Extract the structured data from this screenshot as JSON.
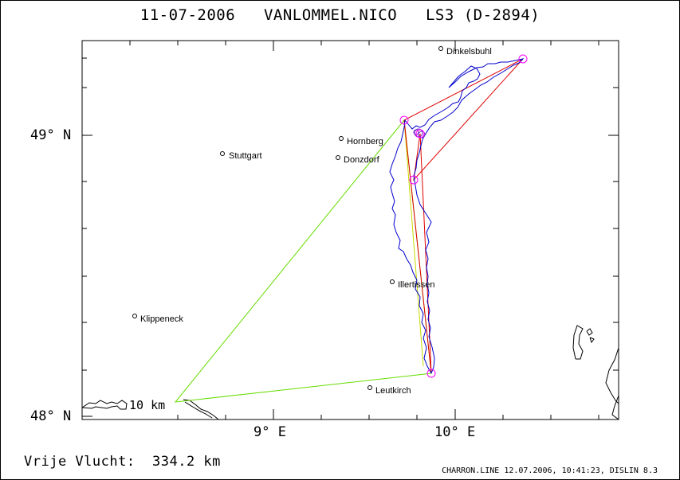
{
  "title": "11-07-2006   VANLOMMEL.NICO   LS3 (D-2894)",
  "axes": {
    "y_labels": [
      "49° N",
      "48° N"
    ],
    "x_labels": [
      "9° E",
      "10° E"
    ]
  },
  "places": [
    {
      "name": "Dinkelsbuhl"
    },
    {
      "name": "Hornberg"
    },
    {
      "name": "Stuttgart"
    },
    {
      "name": "Donzdorf"
    },
    {
      "name": "Illertissen"
    },
    {
      "name": "Klippeneck"
    },
    {
      "name": "Leutkirch"
    }
  ],
  "scale_label": "10 km",
  "distance_text": "Vrije Vlucht:  334.2 km",
  "footer": "CHARRON.LINE 12.07.2006, 10:41:23, DISLIN 8.3",
  "colors": {
    "track": "#0000cc",
    "task": "#e00000",
    "free_flight": "#66dd00",
    "turnpoint": "#ff00ff"
  }
}
